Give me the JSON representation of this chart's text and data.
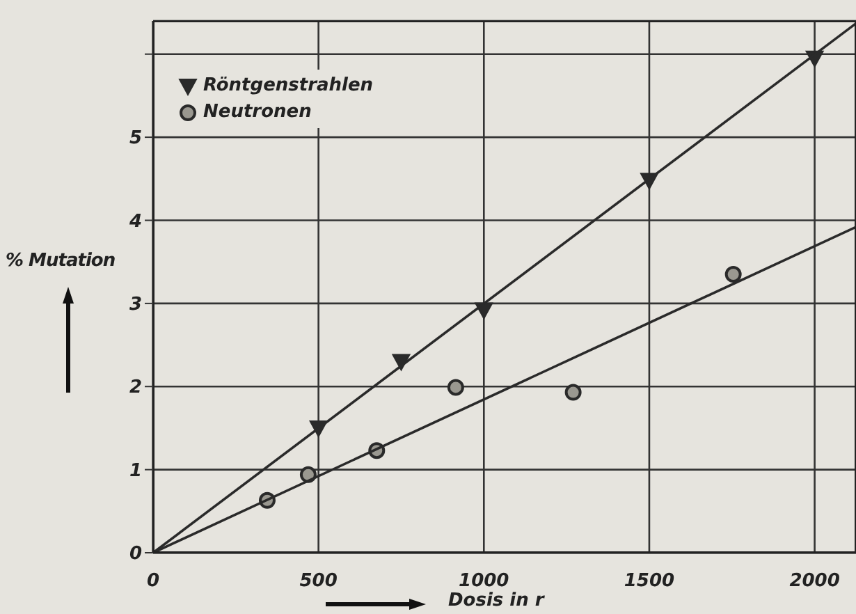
{
  "chart_data": {
    "type": "scatter",
    "xlabel": "Dosis in r",
    "ylabel": "% Mutation",
    "xlim": [
      0,
      2125
    ],
    "xticks": [
      0,
      500,
      1000,
      1500,
      2000
    ],
    "ylim": [
      0,
      6.4
    ],
    "yticks": [
      0,
      1,
      2,
      3,
      4,
      5,
      {
        "value": 6,
        "label": null
      }
    ],
    "grid": true,
    "legend": "top left",
    "series": [
      {
        "name": "Röntgenstrahlen",
        "marker": "triangle",
        "color": "#2a2a2a",
        "x": [
          500,
          750,
          1000,
          1500,
          2000
        ],
        "values": [
          1.5,
          2.3,
          2.92,
          4.48,
          5.95
        ]
      },
      {
        "name": "Neutronen",
        "marker": "circle",
        "color": "#2a2a2a",
        "x": [
          345,
          469,
          676,
          915,
          1270,
          1754
        ],
        "values": [
          0.63,
          0.94,
          1.23,
          1.99,
          1.93,
          3.35
        ]
      },
      {
        "type": "line",
        "color": "#2a2a2a",
        "x": [
          0,
          2125
        ],
        "values": [
          0,
          6.37
        ]
      },
      {
        "type": "line",
        "color": "#2a2a2a",
        "x": [
          0,
          2125
        ],
        "values": [
          0,
          3.92
        ]
      }
    ]
  }
}
